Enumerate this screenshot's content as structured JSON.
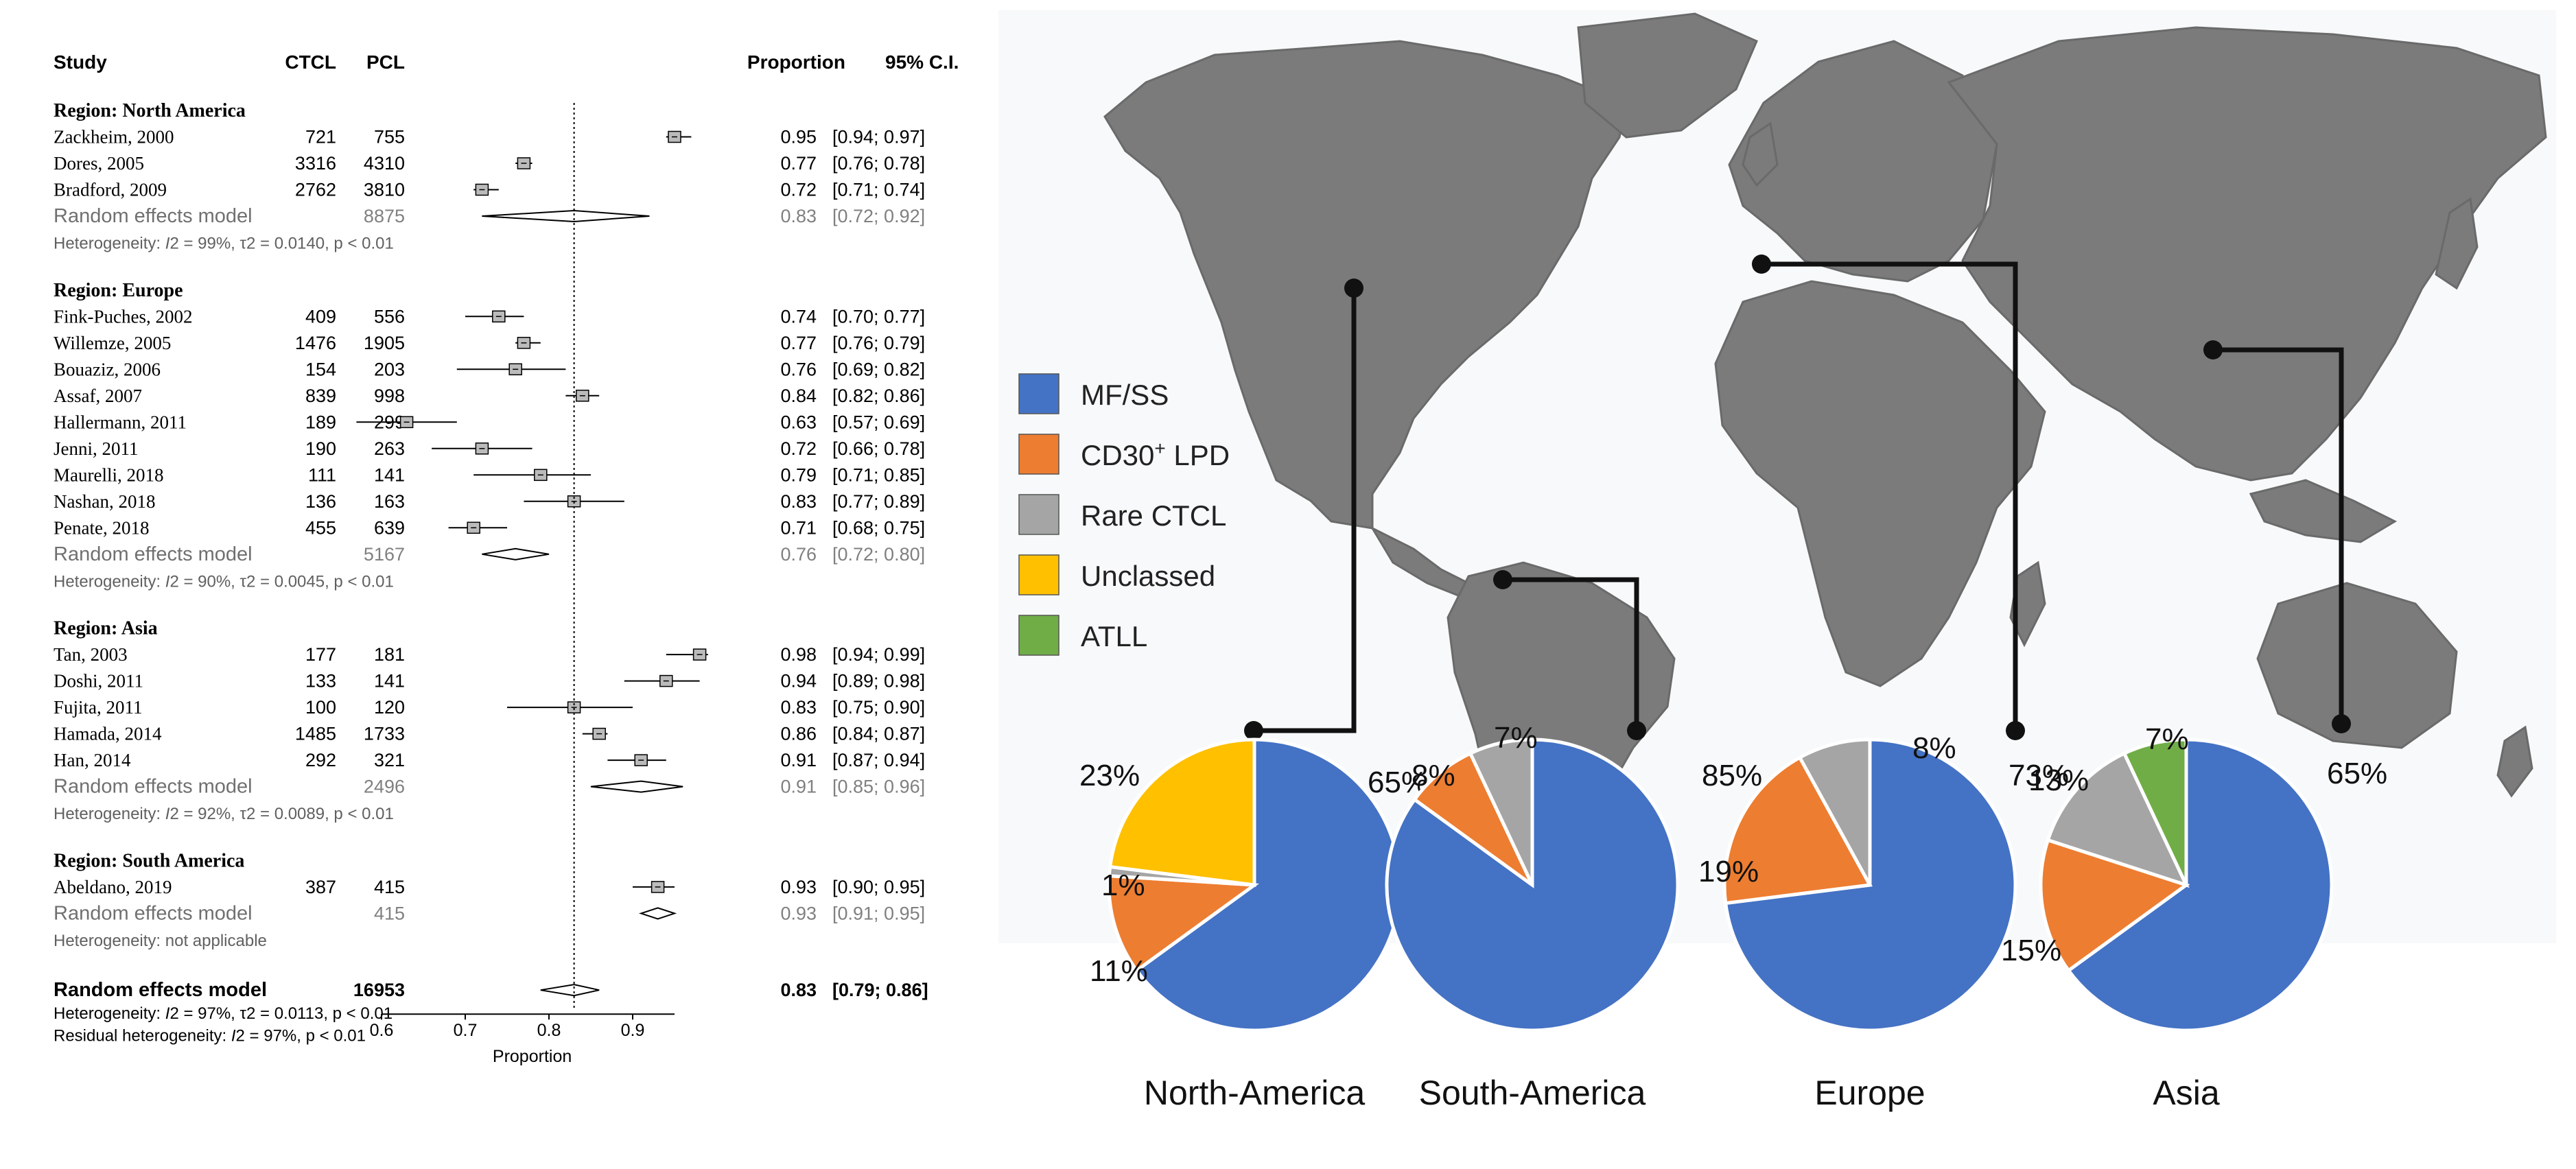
{
  "chart_data": [
    {
      "type": "forest",
      "columns": {
        "study": "Study",
        "ctcl": "CTCL",
        "pcl": "PCL",
        "proportion": "Proportion",
        "ci": "95% C.I."
      },
      "x_axis": {
        "label": "Proportion",
        "ticks": [
          "0.6",
          "0.7",
          "0.8",
          "0.9"
        ],
        "range": [
          0.6,
          1.0
        ],
        "reference_line": 0.83
      },
      "groups": [
        {
          "title": "Region: North America",
          "studies": [
            {
              "name": "Zackheim, 2000",
              "ctcl": "721",
              "pcl": "755",
              "prop": 0.95,
              "lo": 0.94,
              "hi": 0.97,
              "prop_text": "0.95",
              "ci_text": "[0.94; 0.97]"
            },
            {
              "name": "Dores, 2005",
              "ctcl": "3316",
              "pcl": "4310",
              "prop": 0.77,
              "lo": 0.76,
              "hi": 0.78,
              "prop_text": "0.77",
              "ci_text": "[0.76; 0.78]"
            },
            {
              "name": "Bradford, 2009",
              "ctcl": "2762",
              "pcl": "3810",
              "prop": 0.72,
              "lo": 0.71,
              "hi": 0.74,
              "prop_text": "0.72",
              "ci_text": "[0.71; 0.74]"
            }
          ],
          "model": {
            "label": "Random effects model",
            "pcl": "8875",
            "prop": 0.83,
            "lo": 0.72,
            "hi": 0.92,
            "prop_text": "0.83",
            "ci_text": "[0.72; 0.92]"
          },
          "heterogeneity": {
            "prefix": "Heterogeneity: ",
            "i2": "I",
            "rest": "2 = 99%, τ2 = 0.0140, p < 0.01"
          }
        },
        {
          "title": "Region: Europe",
          "studies": [
            {
              "name": "Fink-Puches, 2002",
              "ctcl": "409",
              "pcl": "556",
              "prop": 0.74,
              "lo": 0.7,
              "hi": 0.77,
              "prop_text": "0.74",
              "ci_text": "[0.70; 0.77]"
            },
            {
              "name": "Willemze, 2005",
              "ctcl": "1476",
              "pcl": "1905",
              "prop": 0.77,
              "lo": 0.76,
              "hi": 0.79,
              "prop_text": "0.77",
              "ci_text": "[0.76; 0.79]"
            },
            {
              "name": "Bouaziz, 2006",
              "ctcl": "154",
              "pcl": "203",
              "prop": 0.76,
              "lo": 0.69,
              "hi": 0.82,
              "prop_text": "0.76",
              "ci_text": "[0.69; 0.82]"
            },
            {
              "name": "Assaf, 2007",
              "ctcl": "839",
              "pcl": "998",
              "prop": 0.84,
              "lo": 0.82,
              "hi": 0.86,
              "prop_text": "0.84",
              "ci_text": "[0.82; 0.86]"
            },
            {
              "name": "Hallermann, 2011",
              "ctcl": "189",
              "pcl": "299",
              "prop": 0.63,
              "lo": 0.57,
              "hi": 0.69,
              "prop_text": "0.63",
              "ci_text": "[0.57; 0.69]"
            },
            {
              "name": "Jenni, 2011",
              "ctcl": "190",
              "pcl": "263",
              "prop": 0.72,
              "lo": 0.66,
              "hi": 0.78,
              "prop_text": "0.72",
              "ci_text": "[0.66; 0.78]"
            },
            {
              "name": "Maurelli, 2018",
              "ctcl": "111",
              "pcl": "141",
              "prop": 0.79,
              "lo": 0.71,
              "hi": 0.85,
              "prop_text": "0.79",
              "ci_text": "[0.71; 0.85]"
            },
            {
              "name": "Nashan, 2018",
              "ctcl": "136",
              "pcl": "163",
              "prop": 0.83,
              "lo": 0.77,
              "hi": 0.89,
              "prop_text": "0.83",
              "ci_text": "[0.77; 0.89]"
            },
            {
              "name": "Penate, 2018",
              "ctcl": "455",
              "pcl": "639",
              "prop": 0.71,
              "lo": 0.68,
              "hi": 0.75,
              "prop_text": "0.71",
              "ci_text": "[0.68; 0.75]"
            }
          ],
          "model": {
            "label": "Random effects model",
            "pcl": "5167",
            "prop": 0.76,
            "lo": 0.72,
            "hi": 0.8,
            "prop_text": "0.76",
            "ci_text": "[0.72; 0.80]"
          },
          "heterogeneity": {
            "prefix": "Heterogeneity: ",
            "i2": "I",
            "rest": "2 = 90%, τ2 = 0.0045, p < 0.01"
          }
        },
        {
          "title": "Region: Asia",
          "studies": [
            {
              "name": "Tan, 2003",
              "ctcl": "177",
              "pcl": "181",
              "prop": 0.98,
              "lo": 0.94,
              "hi": 0.99,
              "prop_text": "0.98",
              "ci_text": "[0.94; 0.99]"
            },
            {
              "name": "Doshi, 2011",
              "ctcl": "133",
              "pcl": "141",
              "prop": 0.94,
              "lo": 0.89,
              "hi": 0.98,
              "prop_text": "0.94",
              "ci_text": "[0.89; 0.98]"
            },
            {
              "name": "Fujita, 2011",
              "ctcl": "100",
              "pcl": "120",
              "prop": 0.83,
              "lo": 0.75,
              "hi": 0.9,
              "prop_text": "0.83",
              "ci_text": "[0.75; 0.90]"
            },
            {
              "name": "Hamada, 2014",
              "ctcl": "1485",
              "pcl": "1733",
              "prop": 0.86,
              "lo": 0.84,
              "hi": 0.87,
              "prop_text": "0.86",
              "ci_text": "[0.84; 0.87]"
            },
            {
              "name": "Han, 2014",
              "ctcl": "292",
              "pcl": "321",
              "prop": 0.91,
              "lo": 0.87,
              "hi": 0.94,
              "prop_text": "0.91",
              "ci_text": "[0.87; 0.94]"
            }
          ],
          "model": {
            "label": "Random effects model",
            "pcl": "2496",
            "prop": 0.91,
            "lo": 0.85,
            "hi": 0.96,
            "prop_text": "0.91",
            "ci_text": "[0.85; 0.96]"
          },
          "heterogeneity": {
            "prefix": "Heterogeneity: ",
            "i2": "I",
            "rest": "2 = 92%, τ2 = 0.0089, p < 0.01"
          }
        },
        {
          "title": "Region: South America",
          "studies": [
            {
              "name": "Abeldano, 2019",
              "ctcl": "387",
              "pcl": "415",
              "prop": 0.93,
              "lo": 0.9,
              "hi": 0.95,
              "prop_text": "0.93",
              "ci_text": "[0.90; 0.95]"
            }
          ],
          "model": {
            "label": "Random effects model",
            "pcl": "415",
            "prop": 0.93,
            "lo": 0.91,
            "hi": 0.95,
            "prop_text": "0.93",
            "ci_text": "[0.91; 0.95]"
          },
          "heterogeneity": {
            "text": "Heterogeneity: not applicable"
          }
        }
      ],
      "overall": {
        "label": "Random effects model",
        "pcl": "16953",
        "prop": 0.83,
        "lo": 0.79,
        "hi": 0.86,
        "prop_text": "0.83",
        "ci_text": "[0.79; 0.86]",
        "heterogeneity": {
          "prefix": "Heterogeneity: ",
          "i2": "I",
          "rest": "2 = 97%, τ2 = 0.0113, p < 0.01"
        },
        "residual": {
          "prefix": "Residual heterogeneity: ",
          "i2": "I",
          "rest": "2 = 97%, p < 0.01"
        }
      }
    },
    {
      "type": "pie",
      "legend": [
        {
          "label": "MF/SS",
          "color": "#4472C4"
        },
        {
          "label": "CD30",
          "sup": "+",
          "label_after": " LPD",
          "color": "#ED7D31"
        },
        {
          "label": "Rare CTCL",
          "color": "#A5A5A5"
        },
        {
          "label": "Unclassed",
          "color": "#FFC000"
        },
        {
          "label": "ATLL",
          "color": "#70AD47"
        }
      ],
      "legend_placement": "left",
      "pies": [
        {
          "region": "North-America",
          "slices": [
            {
              "category": "MF/SS",
              "value": 65,
              "label": "65%"
            },
            {
              "category": "CD30+ LPD",
              "value": 11,
              "label": "11%"
            },
            {
              "category": "Rare CTCL",
              "value": 1,
              "label": "1%"
            },
            {
              "category": "Unclassed",
              "value": 23,
              "label": "23%"
            }
          ]
        },
        {
          "region": "South-America",
          "slices": [
            {
              "category": "MF/SS",
              "value": 85,
              "label": "85%"
            },
            {
              "category": "CD30+ LPD",
              "value": 8,
              "label": "8%"
            },
            {
              "category": "Rare CTCL",
              "value": 7,
              "label": "7%"
            }
          ]
        },
        {
          "region": "Europe",
          "slices": [
            {
              "category": "MF/SS",
              "value": 73,
              "label": "73%"
            },
            {
              "category": "CD30+ LPD",
              "value": 19,
              "label": "19%"
            },
            {
              "category": "Rare CTCL",
              "value": 8,
              "label": "8%"
            }
          ]
        },
        {
          "region": "Asia",
          "slices": [
            {
              "category": "MF/SS",
              "value": 65,
              "label": "65%"
            },
            {
              "category": "CD30+ LPD",
              "value": 15,
              "label": "15%"
            },
            {
              "category": "Rare CTCL",
              "value": 13,
              "label": "13%"
            },
            {
              "category": "ATLL",
              "value": 7,
              "label": "7%"
            }
          ]
        }
      ],
      "map": {
        "land_color": "#7B7B7B",
        "background_color": "#F7F9FA"
      }
    }
  ]
}
